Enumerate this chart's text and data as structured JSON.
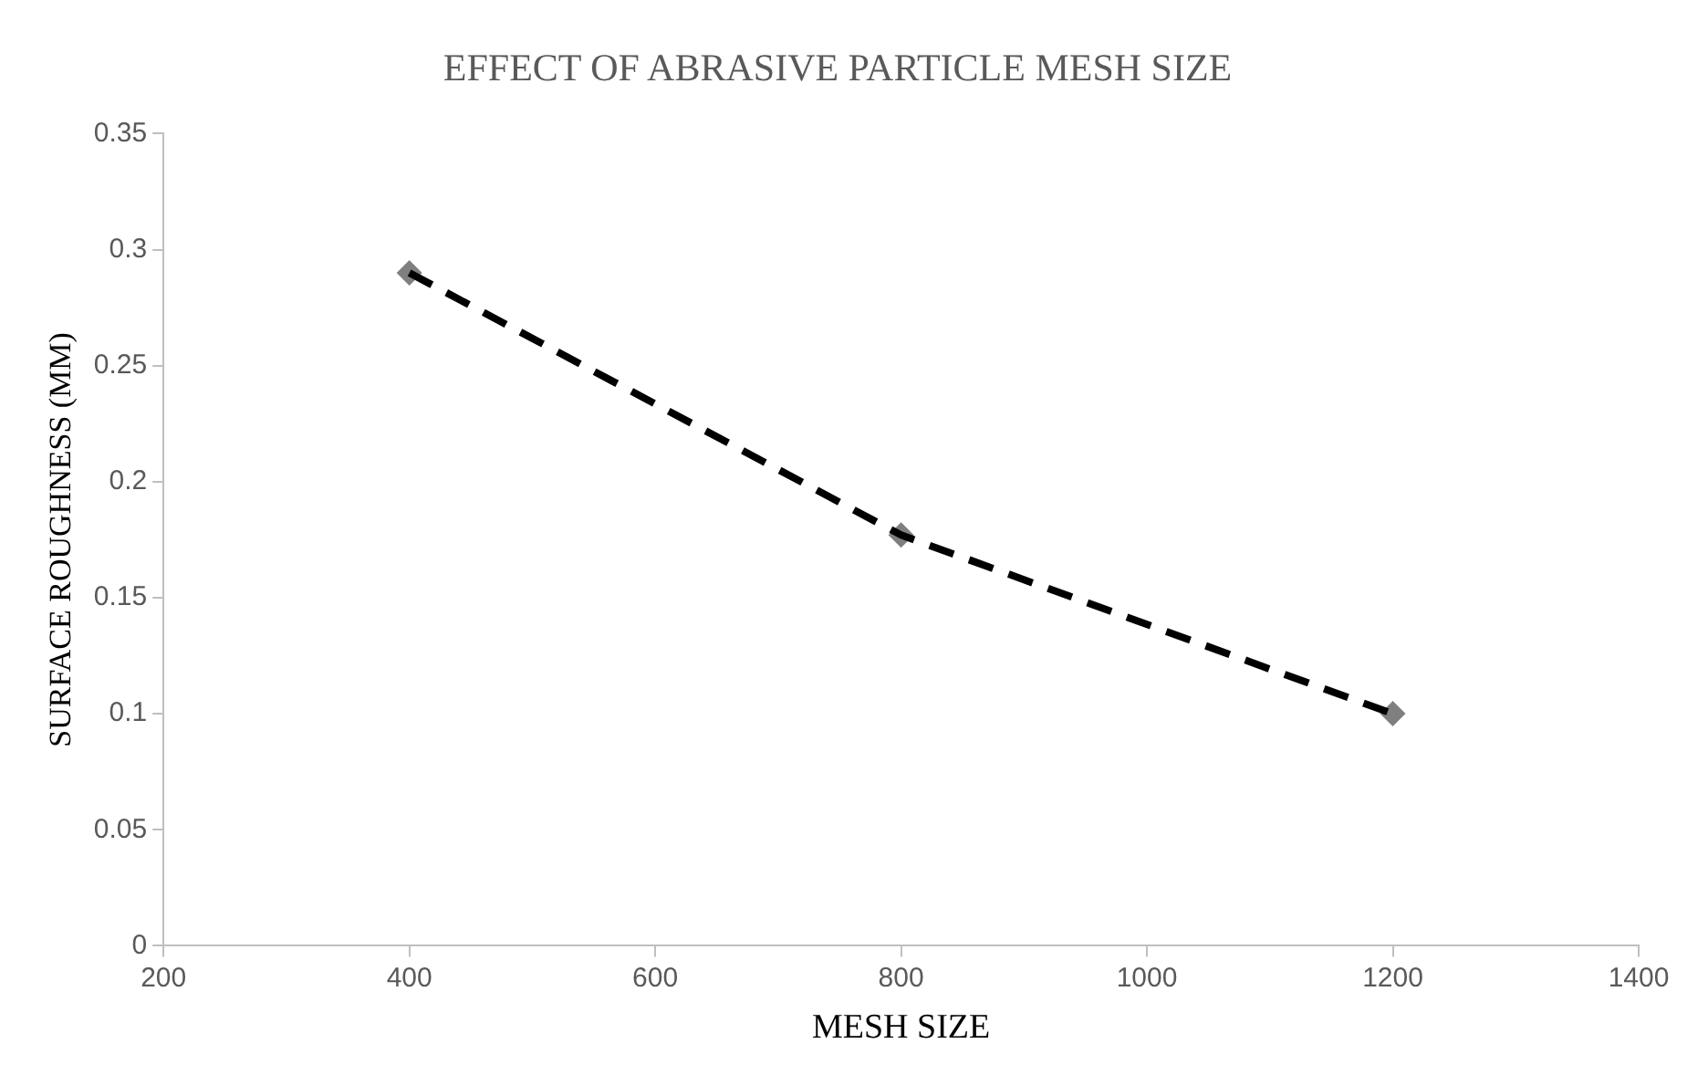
{
  "chart_data": {
    "type": "scatter",
    "title": "EFFECT OF ABRASIVE PARTICLE MESH SIZE",
    "xlabel": "MESH SIZE",
    "ylabel": "SURFACE ROUGHNESS (MM)",
    "x": [
      400,
      800,
      1200
    ],
    "series": [
      {
        "type": "line",
        "color": "#000000",
        "values": [
          0.29,
          0.177,
          0.1
        ],
        "line_style": "dashed",
        "marker": "none"
      },
      {
        "type": "scatter",
        "color": "#7f7f7f",
        "values": [
          0.29,
          0.177,
          0.1
        ],
        "marker": "diamond"
      }
    ],
    "xlim": [
      200,
      1400
    ],
    "xticks": [
      200,
      400,
      600,
      800,
      1000,
      1200,
      1400
    ],
    "ylim": [
      0,
      0.35
    ],
    "yticks": [
      0,
      0.05,
      0.1,
      0.15,
      0.2,
      0.25,
      0.3,
      0.35
    ],
    "grid": false,
    "legend": false
  }
}
